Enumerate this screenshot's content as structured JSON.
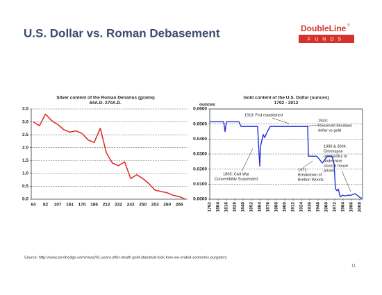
{
  "header": {
    "title": "U.S. Dollar vs. Roman Debasement"
  },
  "logo": {
    "name": "DoubleLine",
    "mark": "®",
    "sub": "FUNDS"
  },
  "chart_data": [
    {
      "type": "line",
      "title": "Silver content of the Roman Denarius (grams)",
      "subtitle": "64A.D. 270A.D.",
      "categories": [
        "64",
        null,
        "82",
        null,
        "107",
        null,
        "161",
        null,
        "170",
        null,
        "186",
        null,
        "212",
        null,
        "222",
        null,
        "243",
        null,
        "250",
        null,
        "253",
        null,
        "260",
        null,
        "266",
        null
      ],
      "series": [
        {
          "name": "Silver content",
          "color": "#e0302a",
          "values": [
            3.0,
            2.85,
            3.3,
            3.05,
            2.9,
            2.7,
            2.6,
            2.65,
            2.55,
            2.3,
            2.2,
            2.75,
            1.8,
            1.4,
            1.3,
            1.45,
            0.8,
            0.95,
            0.8,
            0.6,
            0.35,
            0.3,
            0.25,
            0.15,
            0.1,
            0.0
          ]
        }
      ],
      "ylim": [
        0,
        3.5
      ],
      "yticks": [
        {
          "value": 0,
          "label": "0.0"
        },
        {
          "value": 0.5,
          "label": "0.5"
        },
        {
          "value": 1,
          "label": "1.0"
        },
        {
          "value": 1.5,
          "label": "1.5"
        },
        {
          "value": 2,
          "label": "2.0"
        },
        {
          "value": 2.5,
          "label": "2.5"
        },
        {
          "value": 3,
          "label": "3.0"
        },
        {
          "value": 3.5,
          "label": "3.5"
        }
      ],
      "grid": true
    },
    {
      "type": "line",
      "title": "Gold content of the U.S. Dollar (ounces)",
      "subtitle": "1792 - 2012",
      "y_label": "ounces",
      "series": [
        {
          "name": "Gold content",
          "color": "#1f2fd6",
          "x": [
            1792,
            1812,
            1814,
            1816,
            1834,
            1837,
            1861,
            1862,
            1864,
            1865,
            1866,
            1869,
            1871,
            1875,
            1879,
            1933,
            1934,
            1940,
            1946,
            1950,
            1954,
            1958,
            1961,
            1968,
            1971,
            1973,
            1975,
            1977,
            1980,
            1983,
            1987,
            1990,
            1995,
            2001,
            2005,
            2008,
            2011
          ],
          "values": [
            0.0515,
            0.0515,
            0.045,
            0.0515,
            0.0515,
            0.0484,
            0.0484,
            0.038,
            0.022,
            0.035,
            0.037,
            0.043,
            0.041,
            0.045,
            0.0484,
            0.0484,
            0.0286,
            0.0286,
            0.0286,
            0.0265,
            0.024,
            0.0265,
            0.0286,
            0.0286,
            0.0233,
            0.0069,
            0.0057,
            0.0068,
            0.0016,
            0.0027,
            0.0022,
            0.0026,
            0.0026,
            0.0037,
            0.0024,
            0.0012,
            0.0006
          ]
        }
      ],
      "xlim": [
        1792,
        2012
      ],
      "xticks": [
        1792,
        1804,
        1816,
        1828,
        1840,
        1852,
        1864,
        1876,
        1888,
        1900,
        1912,
        1924,
        1936,
        1948,
        1960,
        1972,
        1984,
        1996,
        2008
      ],
      "ylim": [
        0,
        0.06
      ],
      "yticks": [
        {
          "value": 0,
          "label": "0.0000"
        },
        {
          "value": 0.01,
          "label": "0.0100"
        },
        {
          "value": 0.02,
          "label": "0.0200"
        },
        {
          "value": 0.03,
          "label": "0.0300"
        },
        {
          "value": 0.04,
          "label": "0.0400"
        },
        {
          "value": 0.05,
          "label": "0.0500"
        },
        {
          "value": 0.06,
          "label": "0.0600"
        }
      ],
      "grid": true,
      "annotations": [
        {
          "lines": [
            "1913: Fed established"
          ]
        },
        {
          "lines": [
            "1933:",
            "Roosevelt devalues",
            "dollar vs gold"
          ]
        },
        {
          "lines": [
            "1999 & 2004:",
            "Greenspan",
            "uses policy to",
            "undermine",
            "stock & house",
            "prices"
          ]
        },
        {
          "lines": [
            "1865: Civil War",
            "Convertibility Suspended"
          ]
        },
        {
          "lines": [
            "1971:",
            "Breakdown of",
            "Bretton Woods"
          ]
        }
      ]
    }
  ],
  "footer": {
    "source": "Source: http://www.zerohedge.com/news/41-years-after-death-gold-standard-look-how-we-ended-economic-purgatory",
    "page": "11"
  }
}
